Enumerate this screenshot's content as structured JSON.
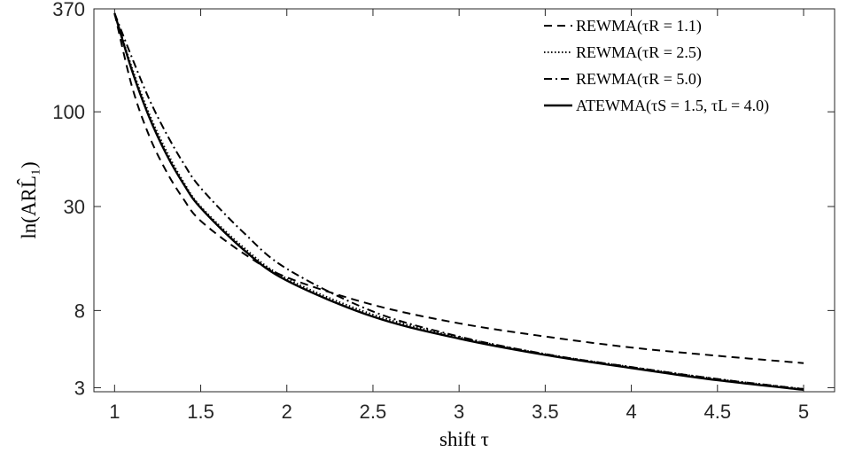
{
  "chart_data": {
    "type": "line",
    "title": "",
    "xlabel": "shift τ",
    "ylabel": "ln(ARL̂₁)",
    "xlim": [
      0.88,
      5.18
    ],
    "ylim": [
      2.85,
      370
    ],
    "y_scale": "log",
    "xticks": [
      1,
      1.5,
      2,
      2.5,
      3,
      3.5,
      4,
      4.5,
      5
    ],
    "xtick_labels": [
      "1",
      "1.5",
      "2",
      "2.5",
      "3",
      "3.5",
      "4",
      "4.5",
      "5"
    ],
    "yticks": [
      3,
      8,
      30,
      100,
      370
    ],
    "ytick_labels": [
      "3",
      "8",
      "30",
      "100",
      "370"
    ],
    "grid": false,
    "legend_position": "top-right",
    "x": [
      1.0,
      1.1,
      1.2,
      1.3,
      1.4,
      1.5,
      1.75,
      2.0,
      2.5,
      3.0,
      3.5,
      4.0,
      4.5,
      5.0
    ],
    "series": [
      {
        "name": "REWMA(τR = 1.1)",
        "style": "dashed",
        "values": [
          350,
          139,
          74,
          47,
          33,
          25,
          16.5,
          12.2,
          8.6,
          6.8,
          5.75,
          5.0,
          4.5,
          4.1
        ]
      },
      {
        "name": "REWMA(τR = 2.5)",
        "style": "dotted",
        "values": [
          350,
          176,
          98,
          61,
          41,
          30,
          17.8,
          12.0,
          7.6,
          5.7,
          4.6,
          3.9,
          3.35,
          2.95
        ]
      },
      {
        "name": "REWMA(τR = 5.0)",
        "style": "dashdot",
        "values": [
          350,
          200,
          118,
          76,
          52,
          38,
          21.5,
          13.6,
          7.9,
          5.75,
          4.6,
          3.9,
          3.35,
          2.95
        ]
      },
      {
        "name": "ATEWMA(τS = 1.5, τL = 4.0)",
        "style": "solid",
        "values": [
          350,
          170,
          94,
          58.5,
          40,
          29.5,
          17.3,
          11.7,
          7.4,
          5.6,
          4.55,
          3.85,
          3.3,
          2.92
        ]
      }
    ]
  }
}
